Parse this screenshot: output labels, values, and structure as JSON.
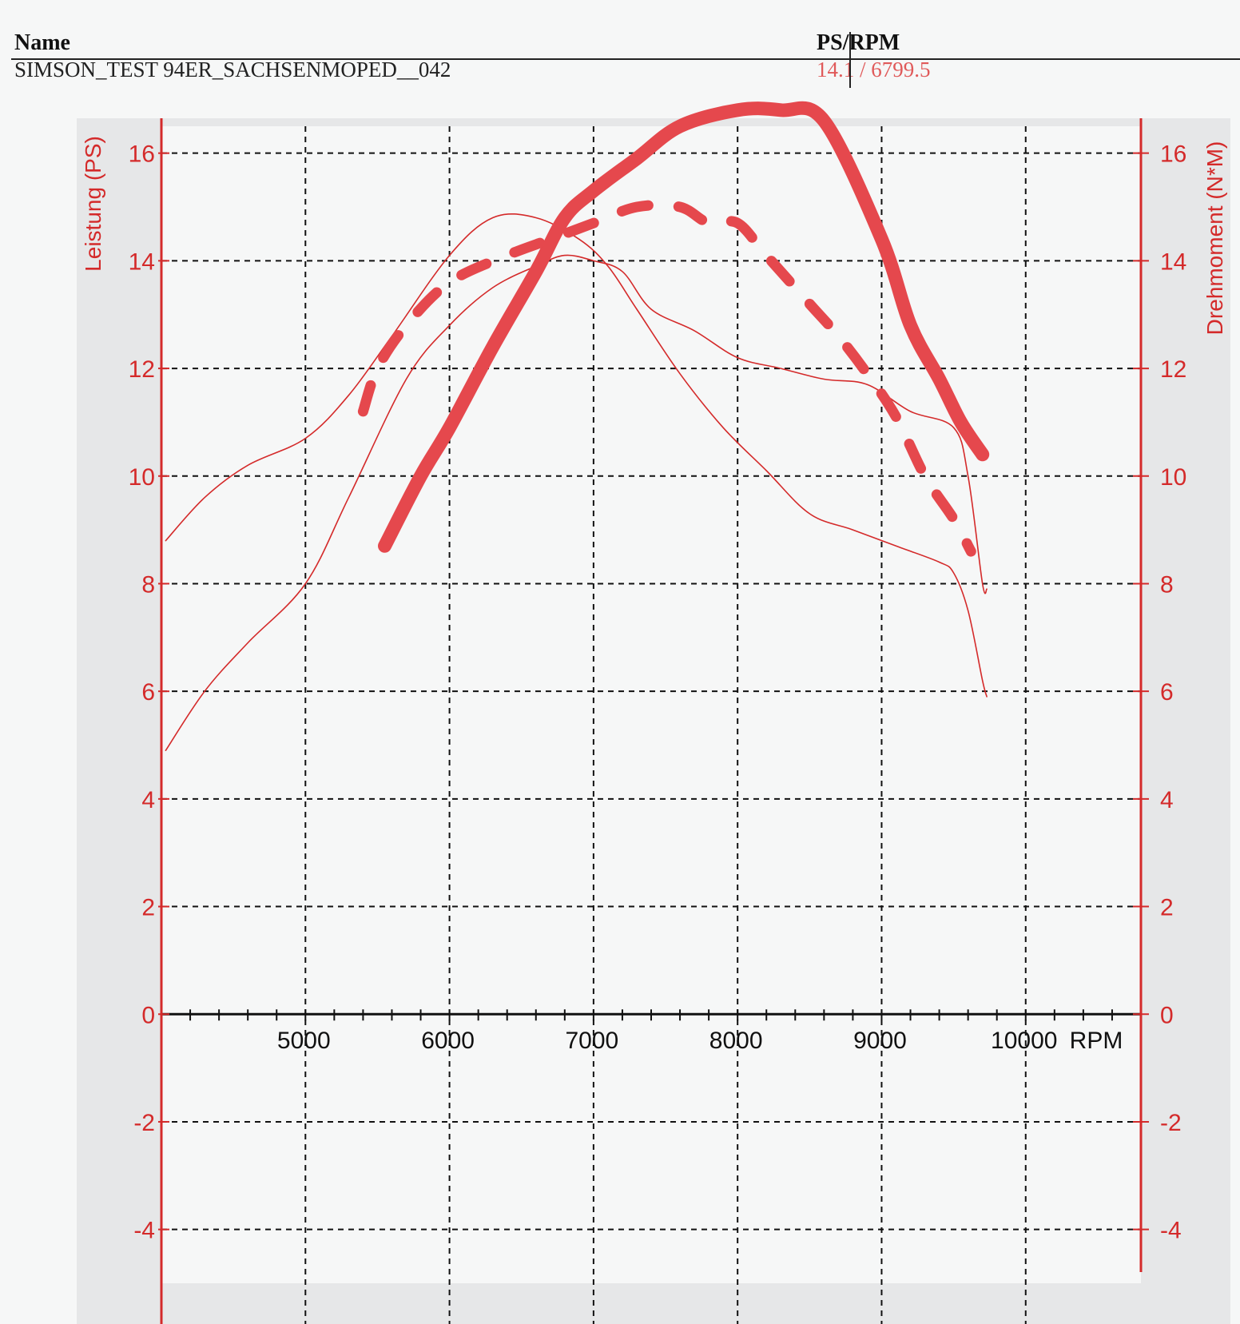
{
  "header": {
    "name_label": "Name",
    "name_value": "SIMSON_TEST 94ER_SACHSENMOPED__042",
    "psrpm_label": "PS/RPM",
    "psrpm_value": "14.1 / 6799.5"
  },
  "colors": {
    "accent": "#d42a2a",
    "annotation": "#e5484d",
    "grid": "#111111",
    "panel": "#e6e7e8",
    "plot": "#f6f7f7"
  },
  "chart_data": {
    "type": "line",
    "xlabel": "RPM",
    "ylabel_left": "Leistung (PS)",
    "ylabel_right": "Drehmoment (N*M)",
    "xlim": [
      4000,
      10800
    ],
    "ylim_left": [
      -5,
      16.5
    ],
    "ylim_right": [
      -5,
      16.5
    ],
    "x_ticks": [
      "5000",
      "6000",
      "7000",
      "8000",
      "9000",
      "10000"
    ],
    "y_ticks_left": [
      "16",
      "14",
      "12",
      "10",
      "8",
      "6",
      "4",
      "2",
      "0",
      "-2",
      "-4"
    ],
    "y_ticks_right": [
      "16",
      "14",
      "12",
      "10",
      "8",
      "6",
      "4",
      "2",
      "0",
      "-2",
      "-4"
    ],
    "grid": true,
    "series": [
      {
        "style": "thin-solid",
        "x": [
          4030,
          4300,
          4600,
          5000,
          5300,
          5700,
          6000,
          6300,
          6600,
          6800,
          7000,
          7200,
          7400,
          7700,
          8000,
          8300,
          8600,
          8900,
          9200,
          9500,
          9600,
          9700,
          9730
        ],
        "values": [
          4.9,
          6,
          6.9,
          8,
          9.6,
          11.8,
          12.8,
          13.5,
          13.9,
          14.1,
          14.0,
          13.8,
          13.1,
          12.7,
          12.2,
          12.0,
          11.8,
          11.7,
          11.2,
          10.9,
          10.0,
          8.0,
          7.9
        ]
      },
      {
        "style": "thin-solid",
        "x": [
          4030,
          4300,
          4600,
          5000,
          5300,
          5600,
          6000,
          6300,
          6600,
          6900,
          7100,
          7300,
          7600,
          7900,
          8200,
          8500,
          8800,
          9100,
          9400,
          9500,
          9600,
          9700,
          9730
        ],
        "values": [
          8.8,
          9.6,
          10.2,
          10.7,
          11.5,
          12.6,
          14.1,
          14.8,
          14.8,
          14.4,
          13.9,
          13.1,
          11.9,
          10.9,
          10.1,
          9.3,
          9.0,
          8.7,
          8.4,
          8.2,
          7.5,
          6.2,
          5.9
        ]
      },
      {
        "style": "annotation-solid",
        "x": [
          5550,
          5800,
          6000,
          6300,
          6600,
          6800,
          7000,
          7300,
          7600,
          8000,
          8300,
          8600,
          9000,
          9200,
          9400,
          9550,
          9700
        ],
        "values": [
          8.7,
          10.0,
          10.9,
          12.4,
          13.8,
          14.8,
          15.3,
          15.9,
          16.5,
          16.8,
          16.8,
          16.6,
          14.4,
          12.8,
          11.8,
          11.0,
          10.4
        ]
      },
      {
        "style": "annotation-dashed",
        "x": [
          5400,
          5500,
          5700,
          6000,
          6400,
          6700,
          7000,
          7300,
          7600,
          7800,
          8000,
          8200,
          8500,
          8700,
          8900,
          9100,
          9300,
          9500,
          9620
        ],
        "values": [
          11.2,
          12.0,
          12.8,
          13.6,
          14.1,
          14.4,
          14.7,
          15.0,
          15.0,
          14.7,
          14.7,
          14.1,
          13.2,
          12.6,
          11.9,
          11.1,
          10.0,
          9.2,
          8.6
        ]
      }
    ]
  }
}
